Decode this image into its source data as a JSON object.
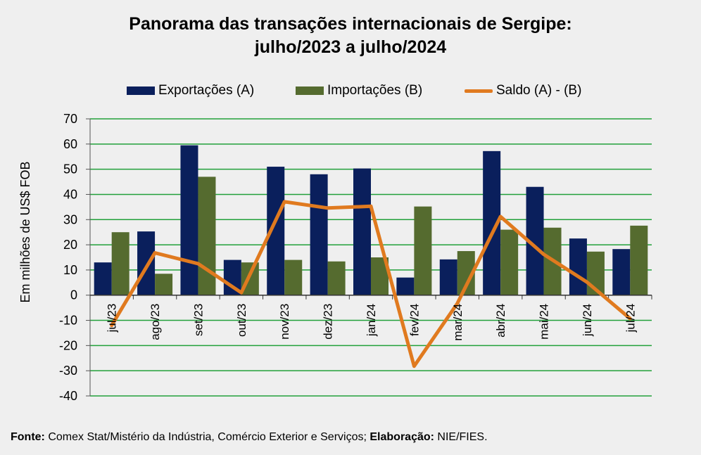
{
  "chart_data": {
    "type": "bar",
    "title_line1": "Panorama  das transações internacionais de Sergipe:",
    "title_line2": "julho/2023 a julho/2024",
    "ylabel": "Em milhões de US$ FOB",
    "xlabel": "",
    "ylim": [
      -40,
      70
    ],
    "yticks": [
      70,
      60,
      50,
      40,
      30,
      20,
      10,
      0,
      -10,
      -20,
      -30,
      -40
    ],
    "grid": true,
    "legend_position": "top",
    "categories": [
      "jul/23",
      "ago/23",
      "set/23",
      "out/23",
      "nov/23",
      "dez/23",
      "jan/24",
      "fev/24",
      "mar/24",
      "abr/24",
      "mai/24",
      "jun/24",
      "jul/24"
    ],
    "series": [
      {
        "name": "Exportações (A)",
        "kind": "bar",
        "color": "#0a1f5c",
        "values": [
          13,
          25.3,
          59.5,
          14,
          51,
          48,
          50.3,
          7,
          14.2,
          57.2,
          43,
          22.5,
          18.3
        ]
      },
      {
        "name": "Importações (B)",
        "kind": "bar",
        "color": "#556b2f",
        "values": [
          25,
          8.5,
          47,
          13,
          14,
          13.4,
          15,
          35.2,
          17.5,
          26,
          26.8,
          17.3,
          27.6
        ]
      },
      {
        "name": "Saldo (A) - (B)",
        "kind": "line",
        "color": "#e07a1f",
        "values": [
          -12,
          16.8,
          12.5,
          1,
          37.1,
          34.6,
          35.3,
          -28.2,
          -3.3,
          31.2,
          16.2,
          5.2,
          -9.3
        ]
      }
    ]
  },
  "footer": {
    "source_label": "Fonte:",
    "source_text": " Comex Stat/Mistério da Indústria, Comércio Exterior e Serviços; ",
    "credit_label": "Elaboração:",
    "credit_text": " NIE/FIES."
  }
}
